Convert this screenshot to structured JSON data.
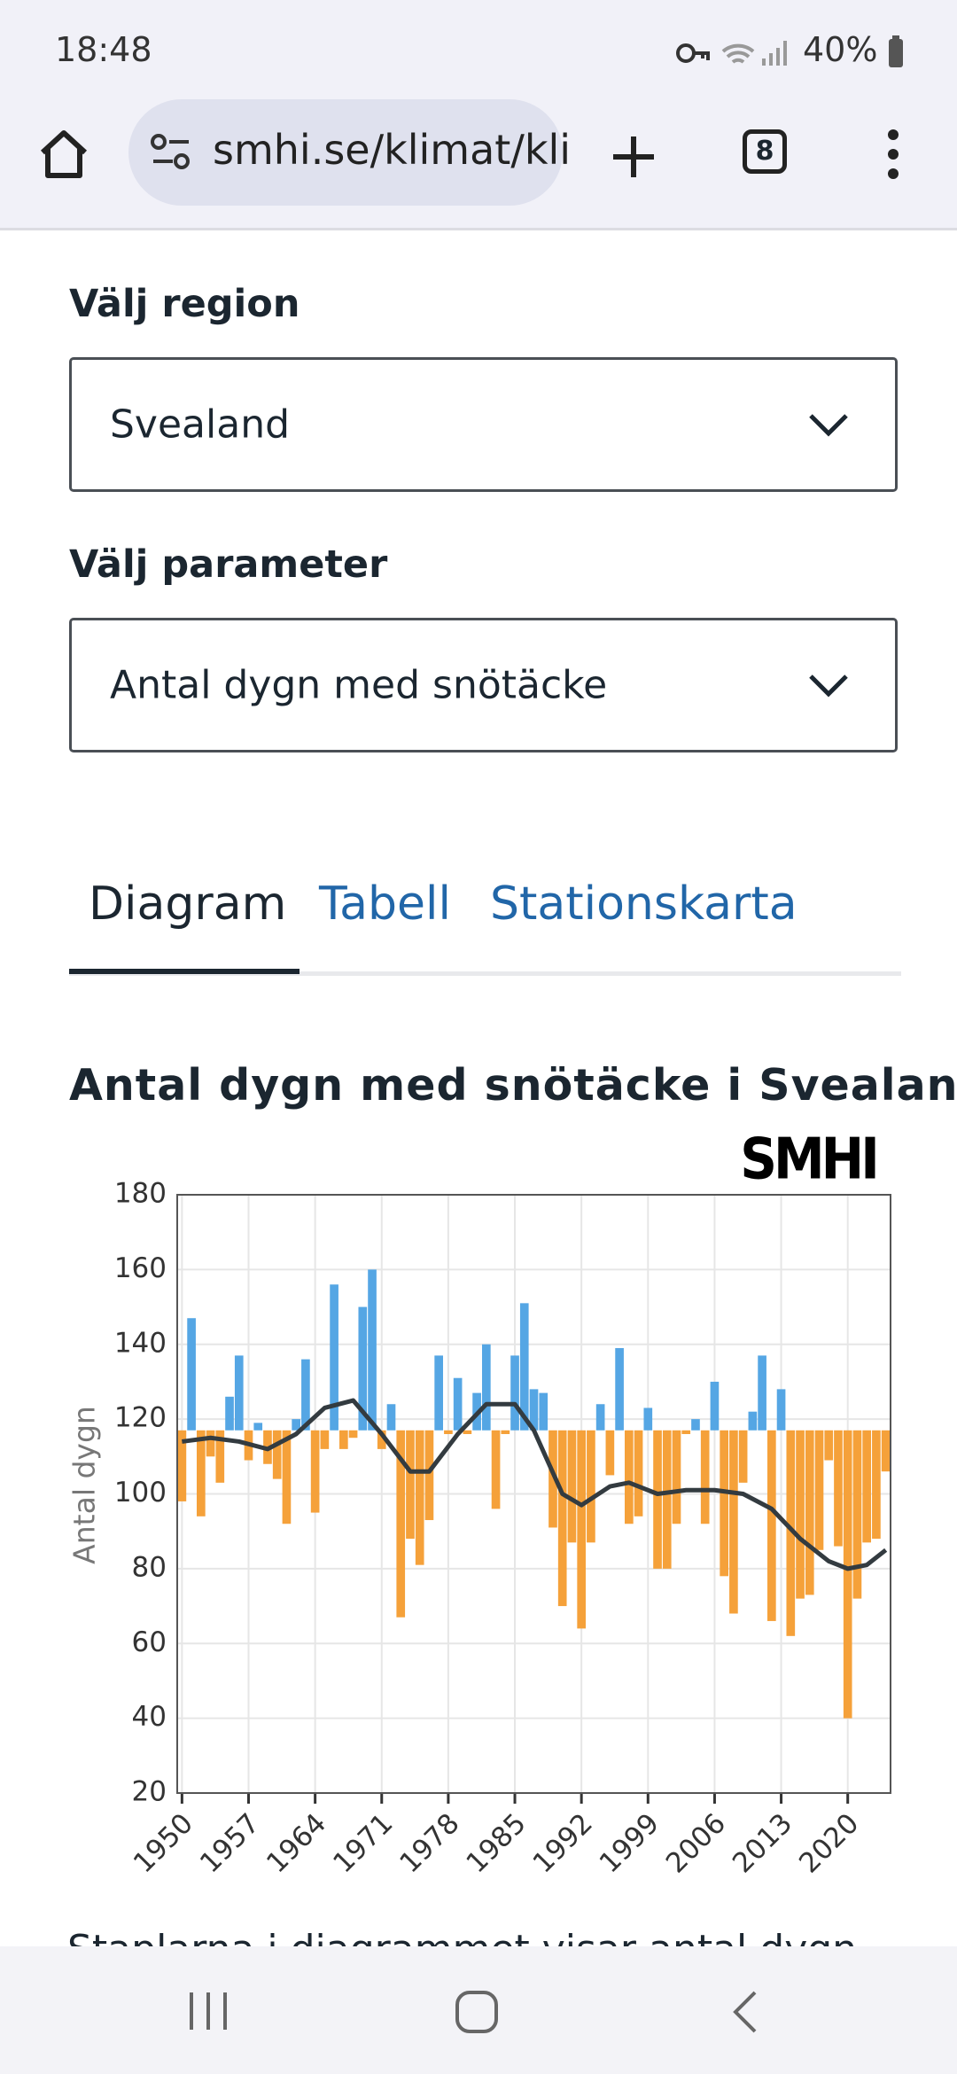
{
  "status_bar": {
    "time": "18:48",
    "battery": "40%"
  },
  "browser": {
    "url": "smhi.se/klimat/kli",
    "tab_count": "8"
  },
  "form": {
    "region_label": "Välj region",
    "region_value": "Svealand",
    "parameter_label": "Välj parameter",
    "parameter_value": "Antal dygn med snötäcke"
  },
  "tabs": [
    "Diagram",
    "Tabell",
    "Stationskarta"
  ],
  "chart_data": {
    "type": "bar",
    "title": "Antal dygn med snötäcke i Svealand",
    "logo": "SMHI",
    "ylabel": "Antal dygn",
    "x": [
      1950,
      1951,
      1952,
      1953,
      1954,
      1955,
      1956,
      1957,
      1958,
      1959,
      1960,
      1961,
      1962,
      1963,
      1964,
      1965,
      1966,
      1967,
      1968,
      1969,
      1970,
      1971,
      1972,
      1973,
      1974,
      1975,
      1976,
      1977,
      1978,
      1979,
      1980,
      1981,
      1982,
      1983,
      1984,
      1985,
      1986,
      1987,
      1988,
      1989,
      1990,
      1991,
      1992,
      1993,
      1994,
      1995,
      1996,
      1997,
      1998,
      1999,
      2000,
      2001,
      2002,
      2003,
      2004,
      2005,
      2006,
      2007,
      2008,
      2009,
      2010,
      2011,
      2012,
      2013,
      2014,
      2015,
      2016,
      2017,
      2018,
      2019,
      2020,
      2021,
      2022,
      2023,
      2024
    ],
    "values": [
      98,
      147,
      94,
      110,
      103,
      126,
      137,
      109,
      119,
      108,
      104,
      92,
      120,
      136,
      95,
      112,
      156,
      112,
      115,
      150,
      160,
      112,
      124,
      67,
      88,
      81,
      93,
      137,
      116,
      131,
      116,
      127,
      140,
      96,
      116,
      137,
      151,
      128,
      127,
      91,
      70,
      87,
      64,
      87,
      124,
      105,
      139,
      92,
      94,
      123,
      80,
      80,
      92,
      116,
      120,
      92,
      130,
      78,
      68,
      103,
      122,
      137,
      66,
      128,
      62,
      72,
      73,
      85,
      109,
      86,
      40,
      72,
      87,
      88,
      106
    ],
    "baseline": 117,
    "color_above": "#55a6e4",
    "color_below": "#f5a13a",
    "line": {
      "x": [
        1950,
        1953,
        1956,
        1959,
        1962,
        1965,
        1968,
        1971,
        1974,
        1976,
        1979,
        1982,
        1985,
        1987,
        1990,
        1992,
        1995,
        1997,
        2000,
        2003,
        2006,
        2009,
        2012,
        2015,
        2018,
        2020,
        2022,
        2024
      ],
      "values": [
        114,
        115,
        114,
        112,
        116,
        123,
        125,
        116,
        106,
        106,
        116,
        124,
        124,
        117,
        100,
        97,
        102,
        103,
        100,
        101,
        101,
        100,
        96,
        88,
        82,
        80,
        81,
        85
      ],
      "color": "#333b40"
    },
    "xlim": [
      1949.5,
      2024.5
    ],
    "ylim": [
      20,
      180
    ],
    "xticks": [
      1950,
      1957,
      1964,
      1971,
      1978,
      1985,
      1992,
      1999,
      2006,
      2013,
      2020
    ],
    "yticks": [
      20,
      40,
      60,
      80,
      100,
      120,
      140,
      160,
      180
    ],
    "grid": true
  },
  "footer_text": "Staplarna i diagrammet visar antal dygn"
}
